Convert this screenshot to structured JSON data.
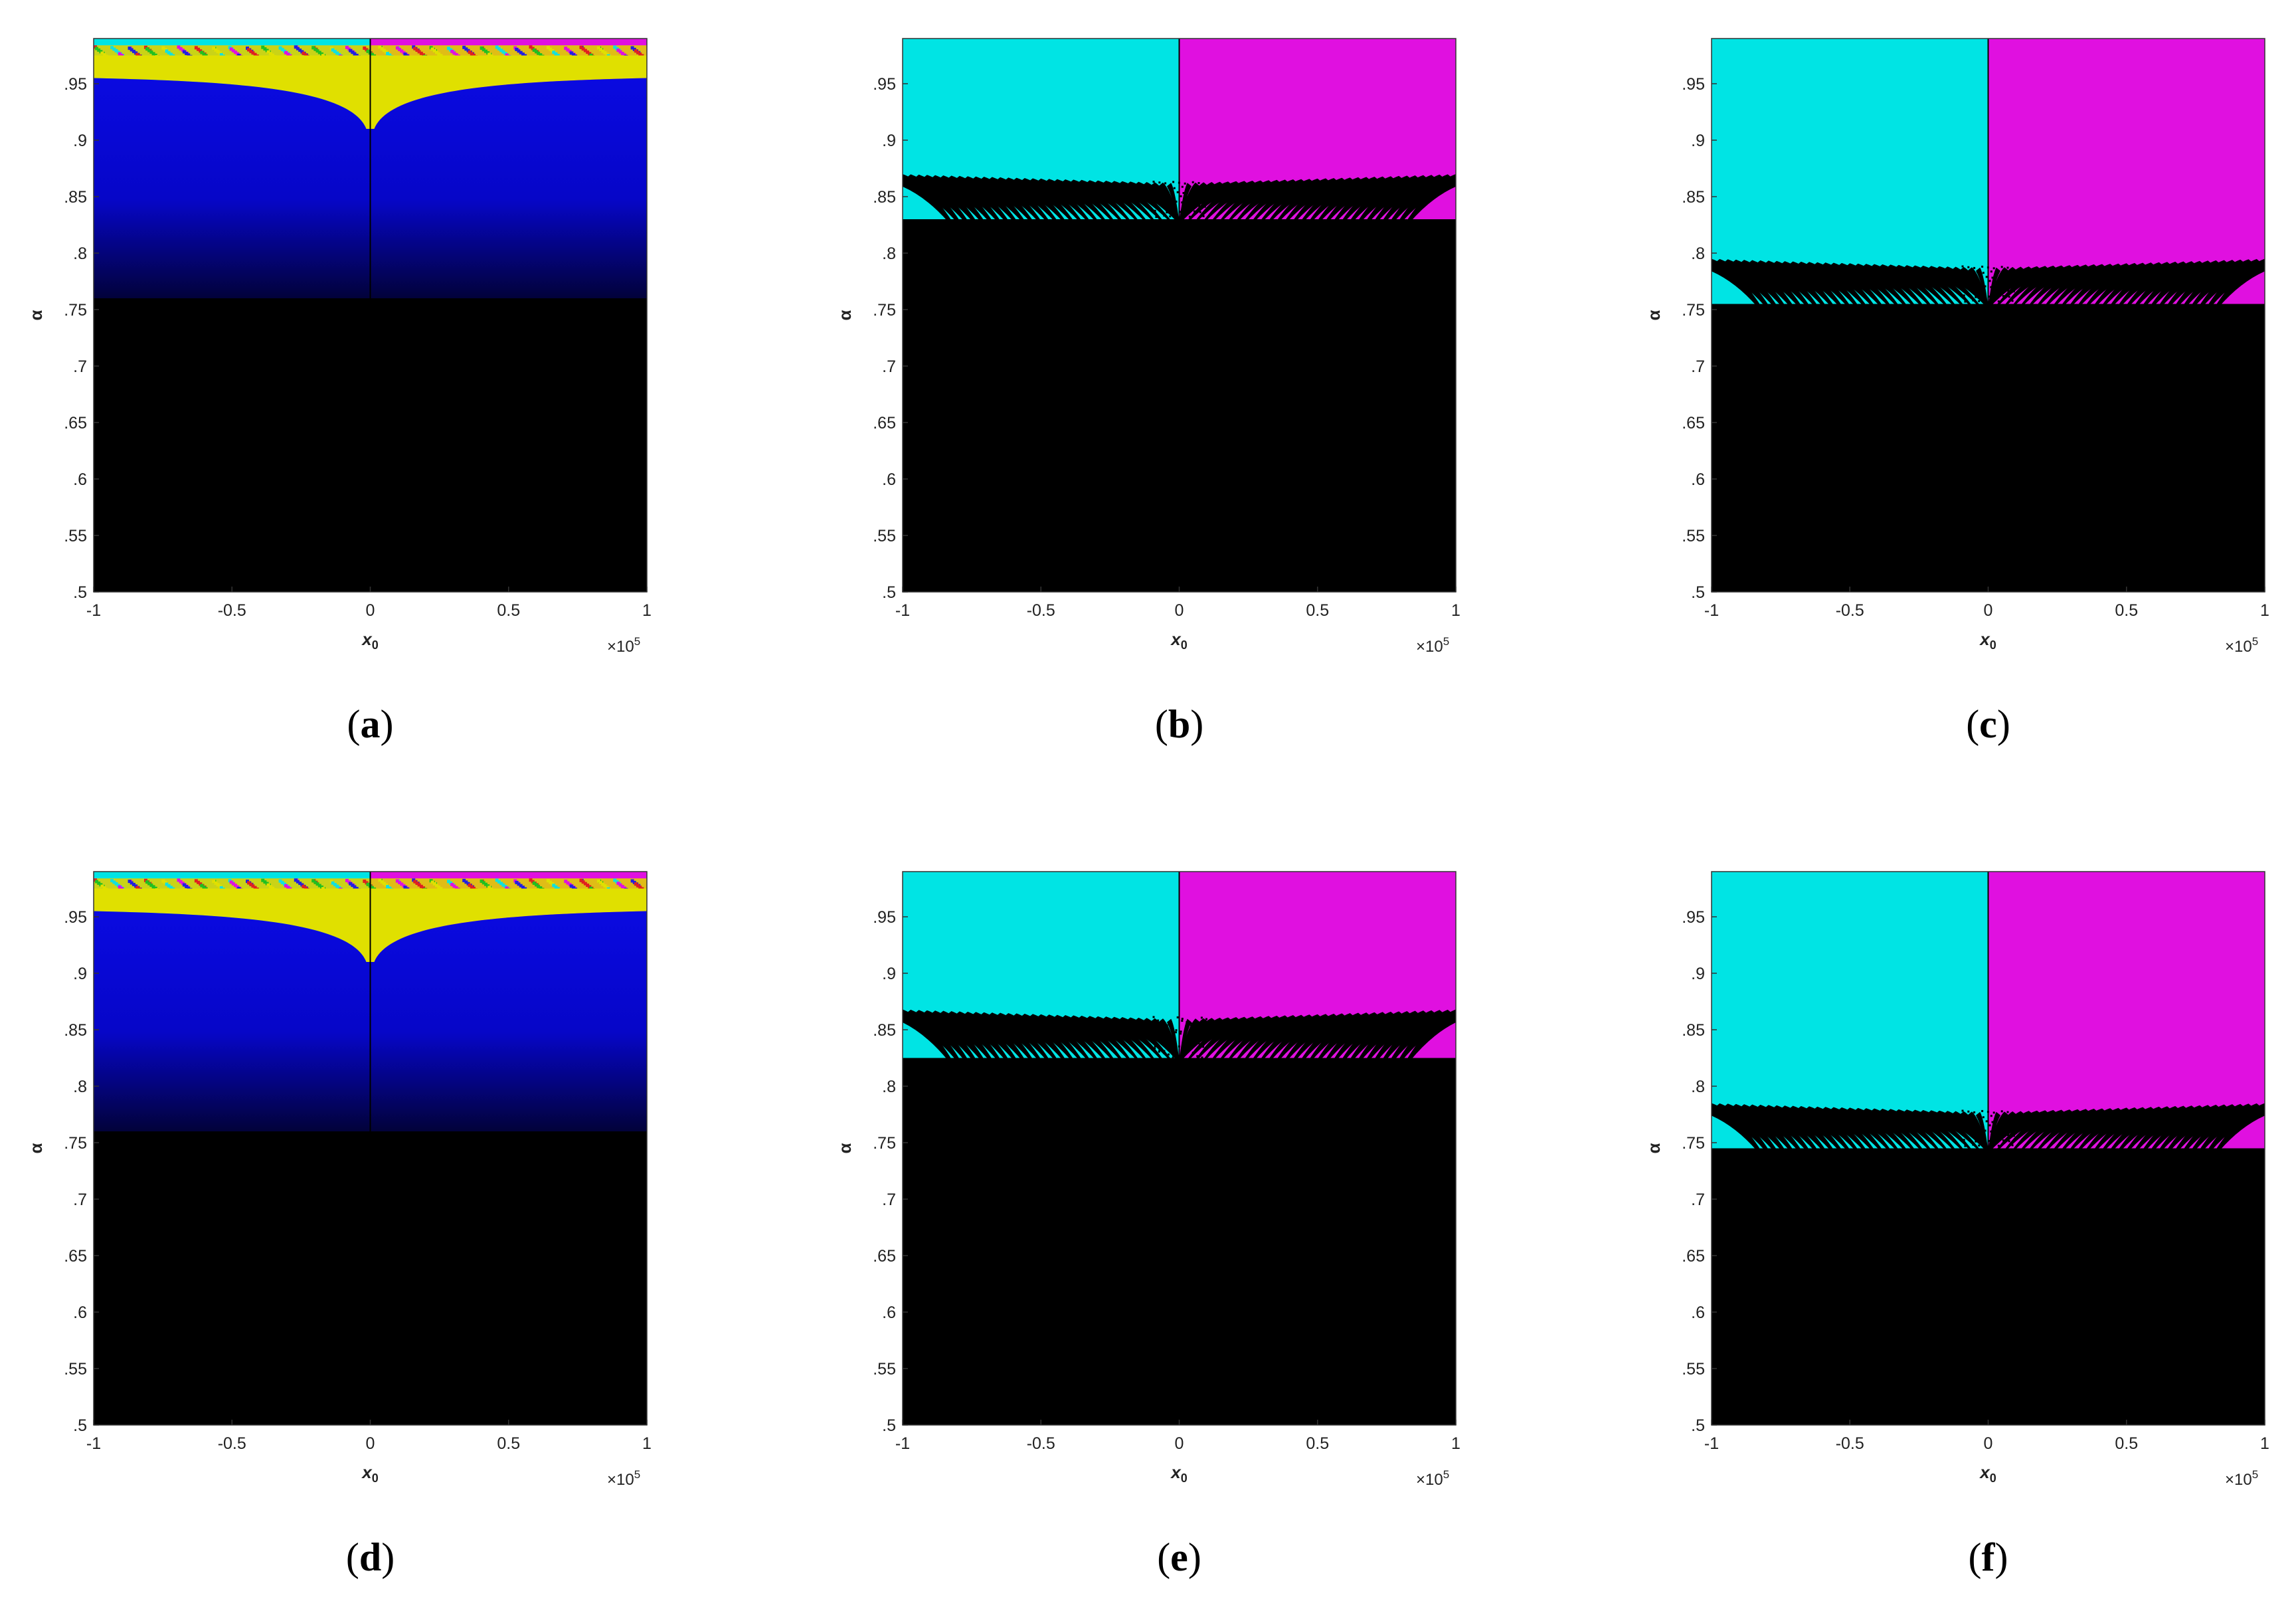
{
  "figure": {
    "panels_labels": [
      "(a)",
      "(b)",
      "(c)",
      "(d)",
      "(e)",
      "(f)"
    ]
  },
  "colors": {
    "cyan": "#00e4e4",
    "magenta": "#e010e0",
    "yellow": "#e0e000",
    "blue": "#0808d8",
    "black": "#000000"
  },
  "chart_data": [
    {
      "panel": "(a)",
      "type": "heatmap",
      "style": "basin-blue",
      "xlabel": "x0",
      "ylabel": "α",
      "xlim": [
        -100000,
        100000
      ],
      "ylim": [
        0.5,
        0.99
      ],
      "x_exponent_label": "×10",
      "x_exponent": "5",
      "xticks": [
        -1,
        -0.5,
        0,
        0.5,
        1
      ],
      "yticks": [
        0.5,
        0.55,
        0.6,
        0.65,
        0.7,
        0.75,
        0.8,
        0.85,
        0.9,
        0.95
      ],
      "regions": {
        "black_below": 0.76,
        "blue_top": 0.955,
        "yellow_top": 0.975,
        "cusp_bottom": 0.91
      },
      "colors": [
        "black",
        "blue",
        "yellow",
        "cyan",
        "magenta"
      ]
    },
    {
      "panel": "(b)",
      "type": "heatmap",
      "style": "basin-fringe",
      "xlabel": "x0",
      "ylabel": "α",
      "xlim": [
        -100000,
        100000
      ],
      "ylim": [
        0.5,
        0.99
      ],
      "x_exponent_label": "×10",
      "x_exponent": "5",
      "xticks": [
        -1,
        -0.5,
        0,
        0.5,
        1
      ],
      "yticks": [
        0.5,
        0.55,
        0.6,
        0.65,
        0.7,
        0.75,
        0.8,
        0.85,
        0.9,
        0.95
      ],
      "regions": {
        "black_below": 0.83,
        "fringe_top": 0.87
      },
      "colors": [
        "black",
        "cyan",
        "magenta"
      ]
    },
    {
      "panel": "(c)",
      "type": "heatmap",
      "style": "basin-fringe",
      "xlabel": "x0",
      "ylabel": "α",
      "xlim": [
        -100000,
        100000
      ],
      "ylim": [
        0.5,
        0.99
      ],
      "x_exponent_label": "×10",
      "x_exponent": "5",
      "xticks": [
        -1,
        -0.5,
        0,
        0.5,
        1
      ],
      "yticks": [
        0.5,
        0.55,
        0.6,
        0.65,
        0.7,
        0.75,
        0.8,
        0.85,
        0.9,
        0.95
      ],
      "regions": {
        "black_below": 0.755,
        "fringe_top": 0.795
      },
      "colors": [
        "black",
        "cyan",
        "magenta"
      ]
    },
    {
      "panel": "(d)",
      "type": "heatmap",
      "style": "basin-blue",
      "xlabel": "x0",
      "ylabel": "α",
      "xlim": [
        -100000,
        100000
      ],
      "ylim": [
        0.5,
        0.99
      ],
      "x_exponent_label": "×10",
      "x_exponent": "5",
      "xticks": [
        -1,
        -0.5,
        0,
        0.5,
        1
      ],
      "yticks": [
        0.5,
        0.55,
        0.6,
        0.65,
        0.7,
        0.75,
        0.8,
        0.85,
        0.9,
        0.95
      ],
      "regions": {
        "black_below": 0.76,
        "blue_top": 0.955,
        "yellow_top": 0.975,
        "cusp_bottom": 0.91
      },
      "colors": [
        "black",
        "blue",
        "yellow",
        "cyan",
        "magenta"
      ]
    },
    {
      "panel": "(e)",
      "type": "heatmap",
      "style": "basin-fringe",
      "xlabel": "x0",
      "ylabel": "α",
      "xlim": [
        -100000,
        100000
      ],
      "ylim": [
        0.5,
        0.99
      ],
      "x_exponent_label": "×10",
      "x_exponent": "5",
      "xticks": [
        -1,
        -0.5,
        0,
        0.5,
        1
      ],
      "yticks": [
        0.5,
        0.55,
        0.6,
        0.65,
        0.7,
        0.75,
        0.8,
        0.85,
        0.9,
        0.95
      ],
      "regions": {
        "black_below": 0.825,
        "fringe_top": 0.868
      },
      "colors": [
        "black",
        "cyan",
        "magenta"
      ]
    },
    {
      "panel": "(f)",
      "type": "heatmap",
      "style": "basin-fringe",
      "xlabel": "x0",
      "ylabel": "α",
      "xlim": [
        -100000,
        100000
      ],
      "ylim": [
        0.5,
        0.99
      ],
      "x_exponent_label": "×10",
      "x_exponent": "5",
      "xticks": [
        -1,
        -0.5,
        0,
        0.5,
        1
      ],
      "yticks": [
        0.5,
        0.55,
        0.6,
        0.65,
        0.7,
        0.75,
        0.8,
        0.85,
        0.9,
        0.95
      ],
      "regions": {
        "black_below": 0.745,
        "fringe_top": 0.785
      },
      "colors": [
        "black",
        "cyan",
        "magenta"
      ]
    }
  ]
}
